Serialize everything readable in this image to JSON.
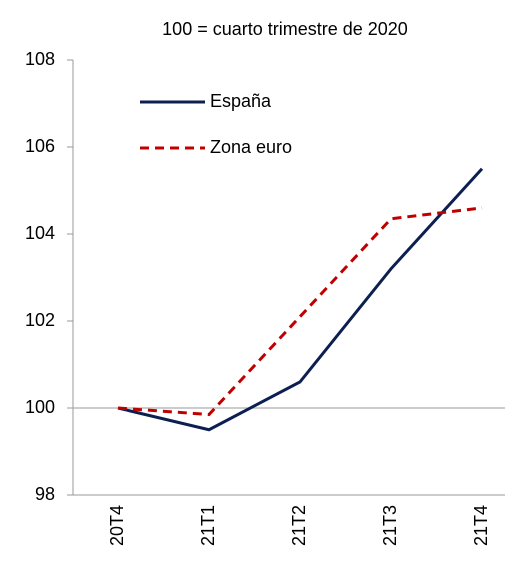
{
  "chart_data": {
    "type": "line",
    "title": "100 = cuarto trimestre de 2020",
    "categories": [
      "20T4",
      "21T1",
      "21T2",
      "21T3",
      "21T4"
    ],
    "series": [
      {
        "name": "España",
        "color": "#0b1f51",
        "dash": "solid",
        "values": [
          100,
          99.5,
          100.6,
          103.2,
          105.5
        ]
      },
      {
        "name": "Zona euro",
        "color": "#c00000",
        "dash": "dashed",
        "values": [
          100,
          99.85,
          102.1,
          104.35,
          104.6
        ]
      }
    ],
    "ylim": [
      98,
      108
    ],
    "yticks": [
      98,
      100,
      102,
      104,
      106,
      108
    ],
    "x_axis_crosses": 100,
    "legend": "upper left"
  }
}
